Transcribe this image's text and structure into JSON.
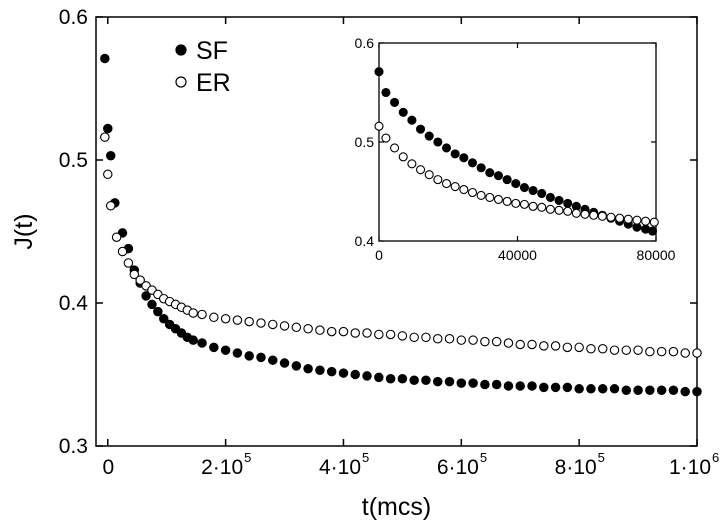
{
  "chart_data": [
    {
      "type": "scatter",
      "xlabel": "t(mcs)",
      "ylabel": "J(t)",
      "xlim": [
        -20000,
        1000000
      ],
      "ylim": [
        0.3,
        0.6
      ],
      "xticks": [
        {
          "value": 0,
          "base": "0",
          "sup": ""
        },
        {
          "value": 200000,
          "base": "2·10",
          "sup": "5"
        },
        {
          "value": 400000,
          "base": "4·10",
          "sup": "5"
        },
        {
          "value": 600000,
          "base": "6·10",
          "sup": "5"
        },
        {
          "value": 800000,
          "base": "8·10",
          "sup": "5"
        },
        {
          "value": 1000000,
          "base": "1·10",
          "sup": "6"
        }
      ],
      "yticks": [
        {
          "value": 0.3,
          "label": "0.3"
        },
        {
          "value": 0.4,
          "label": "0.4"
        },
        {
          "value": 0.5,
          "label": "0.5"
        },
        {
          "value": 0.6,
          "label": "0.6"
        }
      ],
      "legend": {
        "placement": "top-left"
      },
      "series": [
        {
          "name": "SF",
          "marker": "filled-circle",
          "color": "#000000",
          "points": [
            [
              -5000,
              0.571
            ],
            [
              0,
              0.522
            ],
            [
              5000,
              0.503
            ],
            [
              12000,
              0.47
            ],
            [
              25000,
              0.449
            ],
            [
              35000,
              0.438
            ],
            [
              45000,
              0.423
            ],
            [
              55000,
              0.414
            ],
            [
              65000,
              0.405
            ],
            [
              75000,
              0.399
            ],
            [
              85000,
              0.394
            ],
            [
              95000,
              0.389
            ],
            [
              105000,
              0.385
            ],
            [
              115000,
              0.382
            ],
            [
              125000,
              0.379
            ],
            [
              135000,
              0.376
            ],
            [
              145000,
              0.374
            ],
            [
              160000,
              0.372
            ],
            [
              180000,
              0.369
            ],
            [
              200000,
              0.367
            ],
            [
              220000,
              0.365
            ],
            [
              240000,
              0.363
            ],
            [
              260000,
              0.362
            ],
            [
              280000,
              0.36
            ],
            [
              300000,
              0.358
            ],
            [
              320000,
              0.356
            ],
            [
              340000,
              0.354
            ],
            [
              360000,
              0.353
            ],
            [
              380000,
              0.352
            ],
            [
              400000,
              0.351
            ],
            [
              420000,
              0.35
            ],
            [
              440000,
              0.349
            ],
            [
              460000,
              0.348
            ],
            [
              480000,
              0.347
            ],
            [
              500000,
              0.347
            ],
            [
              520000,
              0.346
            ],
            [
              540000,
              0.346
            ],
            [
              560000,
              0.345
            ],
            [
              580000,
              0.345
            ],
            [
              600000,
              0.344
            ],
            [
              620000,
              0.344
            ],
            [
              640000,
              0.343
            ],
            [
              660000,
              0.343
            ],
            [
              680000,
              0.342
            ],
            [
              700000,
              0.342
            ],
            [
              720000,
              0.342
            ],
            [
              740000,
              0.341
            ],
            [
              760000,
              0.341
            ],
            [
              780000,
              0.341
            ],
            [
              800000,
              0.34
            ],
            [
              820000,
              0.34
            ],
            [
              840000,
              0.34
            ],
            [
              860000,
              0.34
            ],
            [
              880000,
              0.339
            ],
            [
              900000,
              0.339
            ],
            [
              920000,
              0.339
            ],
            [
              940000,
              0.339
            ],
            [
              960000,
              0.339
            ],
            [
              980000,
              0.338
            ],
            [
              1000000,
              0.338
            ]
          ]
        },
        {
          "name": "ER",
          "marker": "open-circle",
          "color": "#000000",
          "points": [
            [
              -5000,
              0.516
            ],
            [
              0,
              0.49
            ],
            [
              5000,
              0.468
            ],
            [
              15000,
              0.446
            ],
            [
              25000,
              0.436
            ],
            [
              35000,
              0.428
            ],
            [
              45000,
              0.42
            ],
            [
              55000,
              0.416
            ],
            [
              65000,
              0.412
            ],
            [
              75000,
              0.409
            ],
            [
              85000,
              0.406
            ],
            [
              95000,
              0.403
            ],
            [
              105000,
              0.401
            ],
            [
              115000,
              0.399
            ],
            [
              125000,
              0.397
            ],
            [
              135000,
              0.395
            ],
            [
              145000,
              0.393
            ],
            [
              160000,
              0.392
            ],
            [
              180000,
              0.39
            ],
            [
              200000,
              0.389
            ],
            [
              220000,
              0.388
            ],
            [
              240000,
              0.387
            ],
            [
              260000,
              0.386
            ],
            [
              280000,
              0.385
            ],
            [
              300000,
              0.384
            ],
            [
              320000,
              0.383
            ],
            [
              340000,
              0.382
            ],
            [
              360000,
              0.381
            ],
            [
              380000,
              0.38
            ],
            [
              400000,
              0.38
            ],
            [
              420000,
              0.379
            ],
            [
              440000,
              0.379
            ],
            [
              460000,
              0.378
            ],
            [
              480000,
              0.378
            ],
            [
              500000,
              0.377
            ],
            [
              520000,
              0.376
            ],
            [
              540000,
              0.376
            ],
            [
              560000,
              0.375
            ],
            [
              580000,
              0.375
            ],
            [
              600000,
              0.374
            ],
            [
              620000,
              0.374
            ],
            [
              640000,
              0.373
            ],
            [
              660000,
              0.373
            ],
            [
              680000,
              0.372
            ],
            [
              700000,
              0.371
            ],
            [
              720000,
              0.371
            ],
            [
              740000,
              0.37
            ],
            [
              760000,
              0.37
            ],
            [
              780000,
              0.369
            ],
            [
              800000,
              0.369
            ],
            [
              820000,
              0.368
            ],
            [
              840000,
              0.368
            ],
            [
              860000,
              0.367
            ],
            [
              880000,
              0.367
            ],
            [
              900000,
              0.367
            ],
            [
              920000,
              0.366
            ],
            [
              940000,
              0.366
            ],
            [
              960000,
              0.366
            ],
            [
              980000,
              0.365
            ],
            [
              1000000,
              0.365
            ]
          ]
        }
      ]
    },
    {
      "type": "scatter",
      "inset": true,
      "xlim": [
        0,
        80000
      ],
      "ylim": [
        0.4,
        0.6
      ],
      "xticks": [
        {
          "value": 0,
          "label": "0"
        },
        {
          "value": 40000,
          "label": "40000"
        },
        {
          "value": 80000,
          "label": "80000"
        }
      ],
      "yticks": [
        {
          "value": 0.4,
          "label": "0.4"
        },
        {
          "value": 0.5,
          "label": "0.5"
        },
        {
          "value": 0.6,
          "label": "0.6"
        }
      ],
      "series": [
        {
          "name": "SF",
          "marker": "filled-circle",
          "color": "#000000",
          "points": [
            [
              0,
              0.571
            ],
            [
              2000,
              0.55
            ],
            [
              4500,
              0.54
            ],
            [
              7000,
              0.53
            ],
            [
              9500,
              0.522
            ],
            [
              12000,
              0.513
            ],
            [
              14500,
              0.506
            ],
            [
              17000,
              0.5
            ],
            [
              19500,
              0.494
            ],
            [
              22000,
              0.488
            ],
            [
              24500,
              0.484
            ],
            [
              27000,
              0.479
            ],
            [
              29500,
              0.474
            ],
            [
              32000,
              0.469
            ],
            [
              34500,
              0.466
            ],
            [
              37000,
              0.462
            ],
            [
              39500,
              0.458
            ],
            [
              42000,
              0.454
            ],
            [
              44500,
              0.451
            ],
            [
              47000,
              0.448
            ],
            [
              49500,
              0.444
            ],
            [
              52000,
              0.441
            ],
            [
              54500,
              0.438
            ],
            [
              57000,
              0.435
            ],
            [
              59500,
              0.432
            ],
            [
              62000,
              0.429
            ],
            [
              64500,
              0.426
            ],
            [
              67000,
              0.423
            ],
            [
              69500,
              0.42
            ],
            [
              72000,
              0.417
            ],
            [
              74500,
              0.414
            ],
            [
              77000,
              0.412
            ],
            [
              79000,
              0.41
            ]
          ]
        },
        {
          "name": "ER",
          "marker": "open-circle",
          "color": "#000000",
          "points": [
            [
              0,
              0.516
            ],
            [
              2000,
              0.504
            ],
            [
              4500,
              0.494
            ],
            [
              7000,
              0.485
            ],
            [
              9500,
              0.478
            ],
            [
              12000,
              0.472
            ],
            [
              14500,
              0.467
            ],
            [
              17000,
              0.462
            ],
            [
              19500,
              0.458
            ],
            [
              22000,
              0.455
            ],
            [
              24500,
              0.452
            ],
            [
              27000,
              0.449
            ],
            [
              29500,
              0.446
            ],
            [
              32000,
              0.444
            ],
            [
              34500,
              0.442
            ],
            [
              37000,
              0.44
            ],
            [
              39500,
              0.438
            ],
            [
              42000,
              0.437
            ],
            [
              44500,
              0.435
            ],
            [
              47000,
              0.434
            ],
            [
              49500,
              0.432
            ],
            [
              52000,
              0.431
            ],
            [
              54500,
              0.43
            ],
            [
              57000,
              0.428
            ],
            [
              59500,
              0.427
            ],
            [
              62000,
              0.426
            ],
            [
              64500,
              0.425
            ],
            [
              67000,
              0.424
            ],
            [
              69500,
              0.423
            ],
            [
              72000,
              0.422
            ],
            [
              74500,
              0.421
            ],
            [
              77000,
              0.42
            ],
            [
              79500,
              0.419
            ]
          ]
        }
      ]
    }
  ]
}
